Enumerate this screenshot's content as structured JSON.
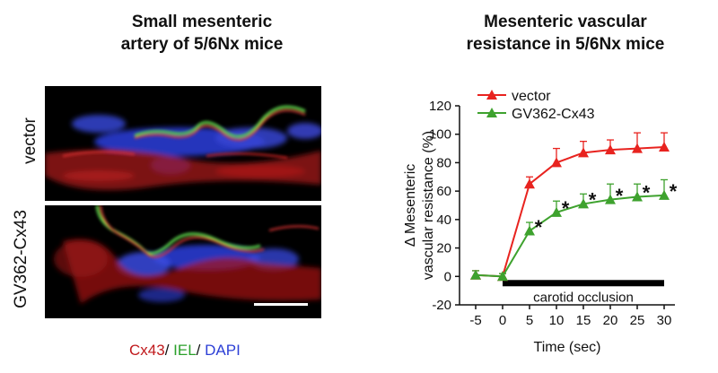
{
  "left_panel": {
    "title_line1": "Small mesenteric",
    "title_line2": "artery of 5/6Nx mice",
    "row_labels": [
      "vector",
      "GV362-Cx43"
    ],
    "stain_legend": [
      {
        "text": "Cx43",
        "color": "#c0191c"
      },
      {
        "text": "/ ",
        "color": "#111111"
      },
      {
        "text": "IEL",
        "color": "#2aa02a"
      },
      {
        "text": "/ ",
        "color": "#111111"
      },
      {
        "text": "DAPI",
        "color": "#2c3fd6"
      }
    ]
  },
  "chart_data": {
    "type": "line",
    "title_line1": "Mesenteric vascular",
    "title_line2": "resistance in 5/6Nx mice",
    "xlabel": "Time (sec)",
    "ylabel_line1": "Δ Mesenteric",
    "ylabel_line2": "vascular resistance  (%)",
    "x": [
      -5,
      0,
      5,
      10,
      15,
      20,
      25,
      30
    ],
    "xlim": [
      -8,
      32
    ],
    "ylim": [
      -20,
      120
    ],
    "yticks": [
      -20,
      0,
      20,
      40,
      60,
      80,
      100,
      120
    ],
    "xticks": [
      -5,
      0,
      5,
      10,
      15,
      20,
      25,
      30
    ],
    "legend_position": "top-left",
    "series": [
      {
        "name": "vector",
        "color": "#e8231f",
        "values": [
          1,
          0,
          65,
          80,
          87,
          89,
          90,
          91
        ],
        "errors": [
          3,
          2,
          5,
          10,
          8,
          7,
          11,
          10
        ]
      },
      {
        "name": "GV362-Cx43",
        "color": "#3ea22e",
        "values": [
          1,
          0,
          32,
          45,
          51,
          54,
          56,
          57
        ],
        "errors": [
          3,
          2,
          6,
          8,
          7,
          11,
          9,
          11
        ]
      }
    ],
    "significance_marker": "*",
    "significant_x": [
      5,
      10,
      15,
      20,
      25,
      30
    ],
    "annotation": {
      "text": "carotid occlusion",
      "from_x": 0,
      "to_x": 30
    }
  }
}
